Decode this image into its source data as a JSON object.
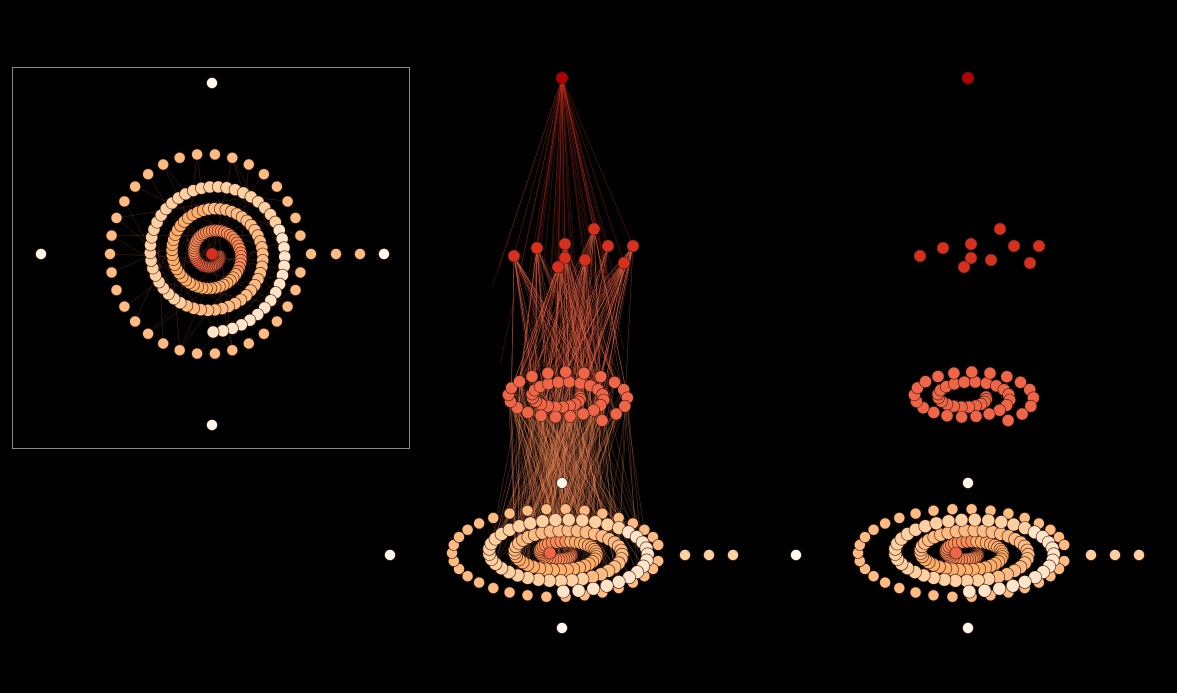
{
  "figure": {
    "panels": [
      {
        "id": "top-view",
        "framed": true,
        "description_type": "spiral-layout"
      },
      {
        "id": "layered-with-edges",
        "framed": false,
        "edges": true
      },
      {
        "id": "layered-no-edges",
        "framed": false,
        "edges": false
      }
    ],
    "layers": [
      {
        "name": "top",
        "count": 1,
        "color": "#b30000"
      },
      {
        "name": "upper",
        "count": 10,
        "color": "#d7301f"
      },
      {
        "name": "middle",
        "count": 45,
        "color": "#ef6548"
      },
      {
        "name": "bottom",
        "count": 110,
        "color": "#fdbb84"
      }
    ],
    "colors": {
      "background": "#000000",
      "frame": "#888888",
      "edge": "#ef6548",
      "node_stroke": "#3a1a10",
      "anchor": "#fff7ec",
      "layer_colors": [
        "#7f0000",
        "#b30000",
        "#d7301f",
        "#ef6548",
        "#fc8d59",
        "#fdbb84",
        "#fdd49e",
        "#fff7ec"
      ]
    }
  }
}
